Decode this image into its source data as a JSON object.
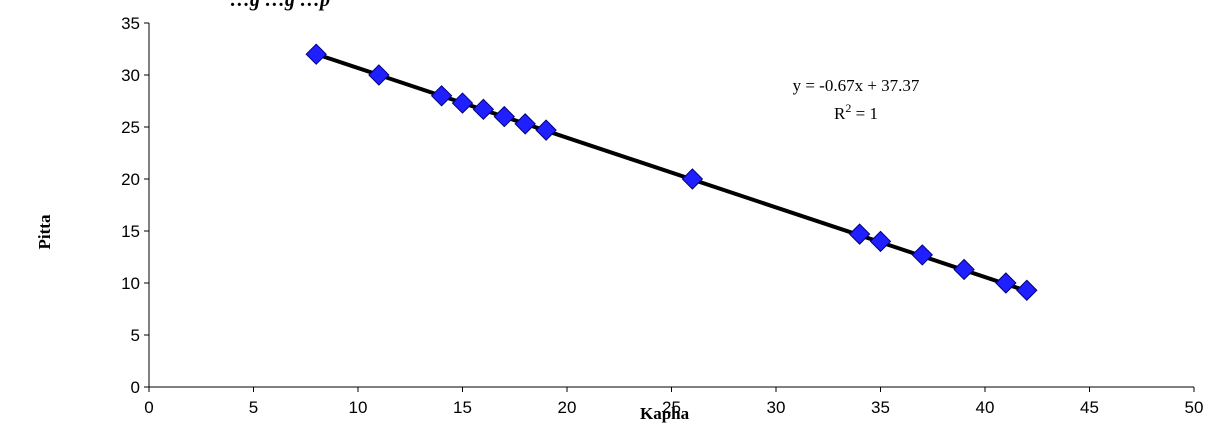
{
  "chart_data": {
    "type": "scatter",
    "title": "…g    …g         …p",
    "xlabel": "Kapha",
    "ylabel": "Pitta",
    "xlim": [
      0,
      50
    ],
    "ylim": [
      0,
      35
    ],
    "x_ticks": [
      "0",
      "5",
      "10",
      "15",
      "20",
      "25",
      "30",
      "35",
      "40",
      "45",
      "50"
    ],
    "y_ticks": [
      "0",
      "5",
      "10",
      "15",
      "20",
      "25",
      "30",
      "35"
    ],
    "grid": false,
    "marker": "diamond",
    "marker_color": "#1f1fff",
    "series": [
      {
        "points": [
          {
            "x": 8,
            "y": 32
          },
          {
            "x": 11,
            "y": 30
          },
          {
            "x": 14,
            "y": 28
          },
          {
            "x": 15,
            "y": 27.3
          },
          {
            "x": 16,
            "y": 26.7
          },
          {
            "x": 17,
            "y": 26
          },
          {
            "x": 18,
            "y": 25.3
          },
          {
            "x": 19,
            "y": 24.7
          },
          {
            "x": 26,
            "y": 20
          },
          {
            "x": 34,
            "y": 14.7
          },
          {
            "x": 35,
            "y": 14
          },
          {
            "x": 37,
            "y": 12.7
          },
          {
            "x": 39,
            "y": 11.3
          },
          {
            "x": 41,
            "y": 10
          },
          {
            "x": 42,
            "y": 9.3
          }
        ]
      }
    ],
    "trendline": {
      "slope": -0.67,
      "intercept": 37.37,
      "x_range": [
        8,
        42
      ],
      "equation": "y = -0.67x + 37.37",
      "r2_label": "R",
      "r2_exponent": "2",
      "r2_value": " = 1",
      "color": "#000000"
    }
  }
}
